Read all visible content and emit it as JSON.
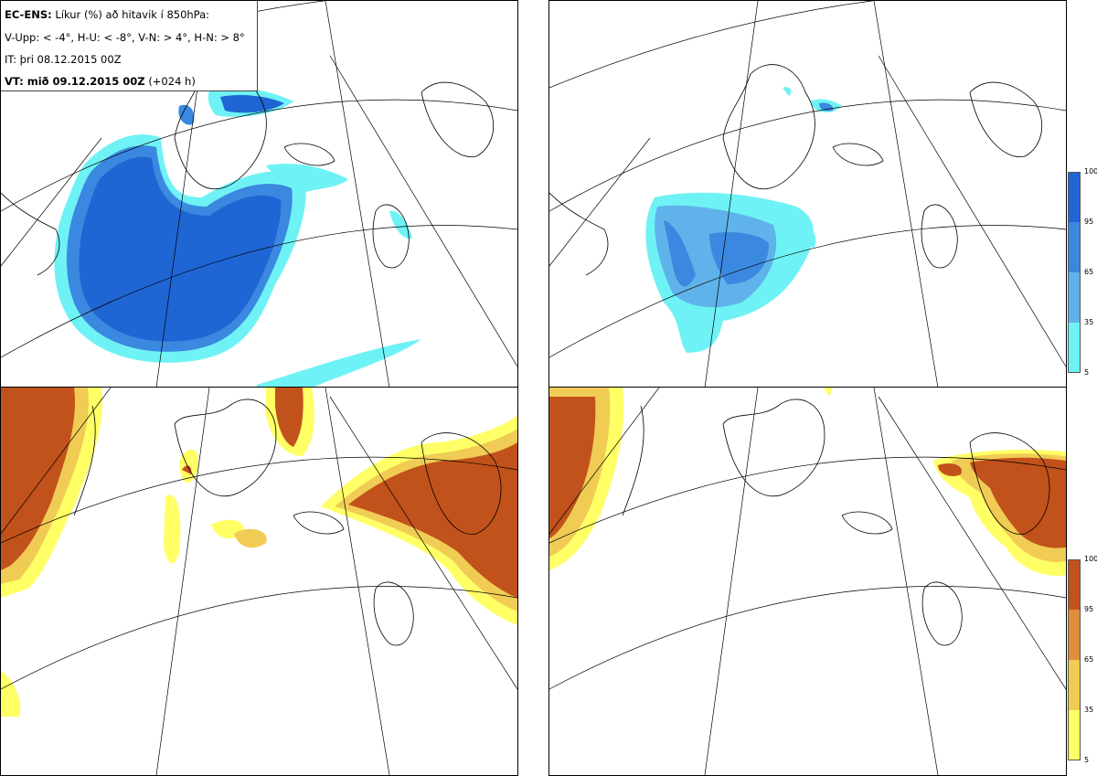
{
  "legend": {
    "line1_bold": "EC-ENS:",
    "line1_rest": "Líkur (%) að hitavik í 850hPa:",
    "line2": "V-Upp: < -4°, H-U: < -8°, V-N: > 4°, H-N: > 8°",
    "line3": "IT: þri 08.12.2015 00Z",
    "line4_bold": "VT: mið 09.12.2015 00Z",
    "line4_rest": "(+024 h)"
  },
  "colorbars": {
    "blue": {
      "ticks": [
        "100",
        "95",
        "65",
        "35",
        "5"
      ],
      "colors": [
        "#1f66d4",
        "#3b88e0",
        "#5fb3ea",
        "#6ff2f5"
      ]
    },
    "orange": {
      "ticks": [
        "100",
        "95",
        "65",
        "35",
        "5"
      ],
      "colors": [
        "#c2521b",
        "#e08e3a",
        "#f0cc55",
        "#ffff66"
      ]
    }
  },
  "panels": [
    {
      "name": "V-Upp"
    },
    {
      "name": "H-U"
    },
    {
      "name": "V-N"
    },
    {
      "name": "H-N"
    }
  ]
}
